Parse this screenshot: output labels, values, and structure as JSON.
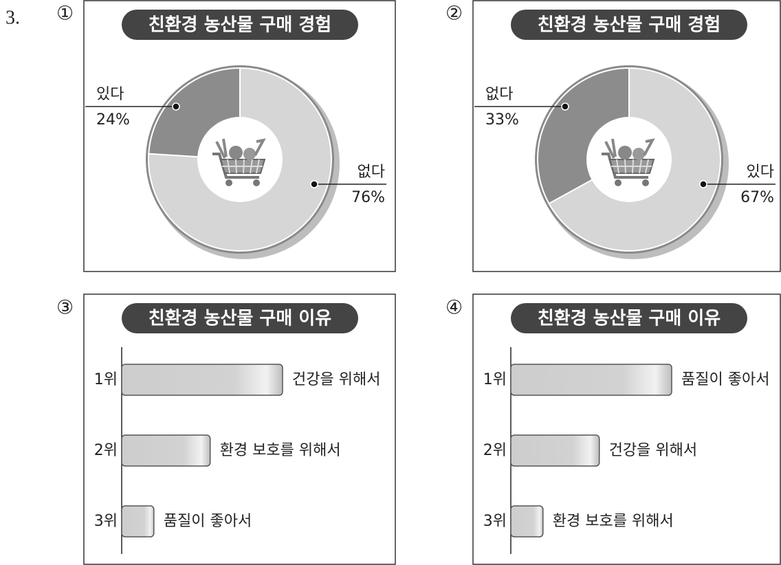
{
  "question_number": "3.",
  "options": [
    "①",
    "②",
    "③",
    "④"
  ],
  "chart_data": [
    {
      "type": "pie",
      "title": "친환경 농산물 구매 경험",
      "categories": [
        "없다",
        "있다"
      ],
      "values": [
        76,
        24
      ],
      "value_labels": [
        "76%",
        "24%"
      ],
      "colors": [
        "#d6d6d6",
        "#8c8c8c"
      ]
    },
    {
      "type": "pie",
      "title": "친환경 농산물 구매 경험",
      "categories": [
        "있다",
        "없다"
      ],
      "values": [
        67,
        33
      ],
      "value_labels": [
        "67%",
        "33%"
      ],
      "colors": [
        "#d6d6d6",
        "#8c8c8c"
      ]
    },
    {
      "type": "bar",
      "title": "친환경 농산물 구매 이유",
      "categories": [
        "1위",
        "2위",
        "3위"
      ],
      "bar_labels": [
        "건강을 위해서",
        "환경 보호를 위해서",
        "품질이 좋아서"
      ],
      "values": [
        60,
        33,
        12
      ],
      "xlim": [
        0,
        100
      ],
      "color": "#cfcfcf"
    },
    {
      "type": "bar",
      "title": "친환경 농산물 구매 이유",
      "categories": [
        "1위",
        "2위",
        "3위"
      ],
      "bar_labels": [
        "품질이 좋아서",
        "건강을 위해서",
        "환경 보호를 위해서"
      ],
      "values": [
        60,
        33,
        12
      ],
      "xlim": [
        0,
        100
      ],
      "color": "#cfcfcf"
    }
  ]
}
